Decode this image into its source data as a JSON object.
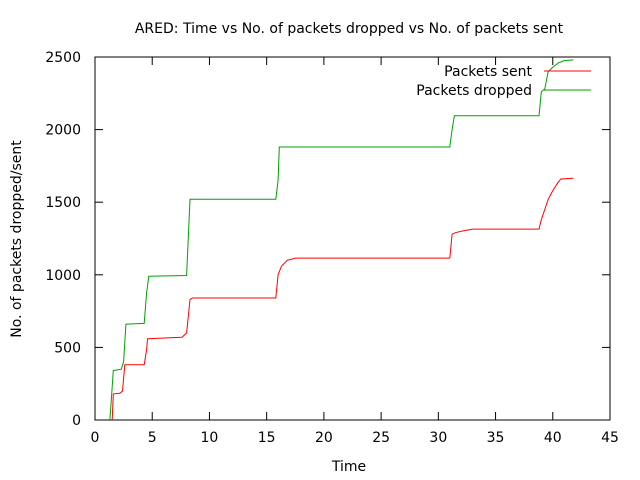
{
  "chart_data": {
    "type": "line",
    "title": "ARED: Time vs No. of packets dropped vs No. of packets sent",
    "xlabel": "Time",
    "ylabel": "No. of packets dropped/sent",
    "xlim": [
      0,
      45
    ],
    "ylim": [
      0,
      2500
    ],
    "xticks": [
      0,
      5,
      10,
      15,
      20,
      25,
      30,
      35,
      40,
      45
    ],
    "yticks": [
      0,
      500,
      1000,
      1500,
      2000,
      2500
    ],
    "grid": false,
    "legend_position": "top-right",
    "series": [
      {
        "name": "Packets sent",
        "color": "#ff0000",
        "points": [
          [
            1.5,
            0
          ],
          [
            1.6,
            180
          ],
          [
            2.2,
            185
          ],
          [
            2.4,
            200
          ],
          [
            2.6,
            380
          ],
          [
            4.3,
            380
          ],
          [
            4.5,
            480
          ],
          [
            4.6,
            560
          ],
          [
            7.6,
            570
          ],
          [
            8.0,
            600
          ],
          [
            8.3,
            830
          ],
          [
            8.5,
            840
          ],
          [
            15.8,
            840
          ],
          [
            16.0,
            1000
          ],
          [
            16.3,
            1060
          ],
          [
            16.8,
            1100
          ],
          [
            17.5,
            1115
          ],
          [
            31.0,
            1115
          ],
          [
            31.2,
            1280
          ],
          [
            31.5,
            1290
          ],
          [
            32.0,
            1300
          ],
          [
            33.0,
            1315
          ],
          [
            38.8,
            1315
          ],
          [
            39.0,
            1380
          ],
          [
            39.3,
            1450
          ],
          [
            39.6,
            1520
          ],
          [
            40.0,
            1580
          ],
          [
            40.4,
            1630
          ],
          [
            40.7,
            1660
          ],
          [
            41.8,
            1665
          ]
        ]
      },
      {
        "name": "Packets dropped",
        "color": "#00a000",
        "points": [
          [
            1.3,
            0
          ],
          [
            1.6,
            340
          ],
          [
            2.3,
            350
          ],
          [
            2.5,
            400
          ],
          [
            2.7,
            660
          ],
          [
            4.3,
            665
          ],
          [
            4.5,
            870
          ],
          [
            4.7,
            990
          ],
          [
            8.0,
            995
          ],
          [
            8.3,
            1520
          ],
          [
            15.8,
            1520
          ],
          [
            16.0,
            1650
          ],
          [
            16.1,
            1880
          ],
          [
            31.0,
            1880
          ],
          [
            31.2,
            2000
          ],
          [
            31.4,
            2095
          ],
          [
            38.8,
            2095
          ],
          [
            39.0,
            2260
          ],
          [
            39.3,
            2280
          ],
          [
            39.6,
            2400
          ],
          [
            40.0,
            2430
          ],
          [
            40.5,
            2460
          ],
          [
            41.0,
            2475
          ],
          [
            41.8,
            2480
          ]
        ]
      }
    ]
  }
}
